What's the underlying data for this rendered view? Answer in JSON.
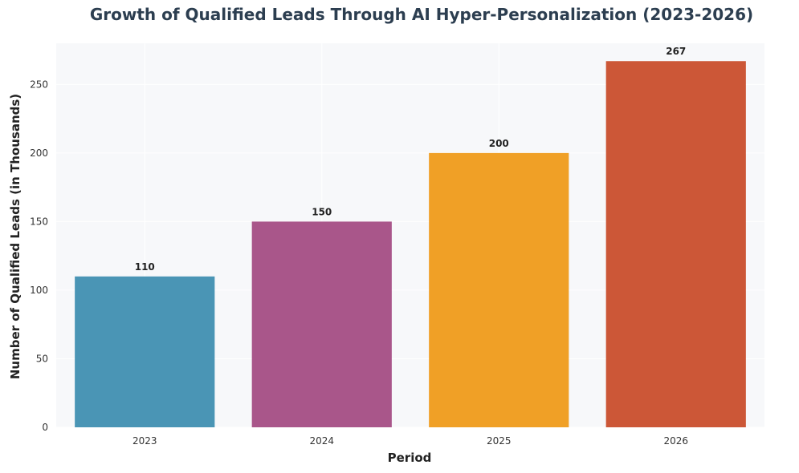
{
  "chart_data": {
    "type": "bar",
    "title": "Growth of Qualified Leads Through AI Hyper-Personalization (2023-2026)",
    "xlabel": "Period",
    "ylabel": "Number of Qualified Leads (in Thousands)",
    "categories": [
      "2023",
      "2024",
      "2025",
      "2026"
    ],
    "values": [
      110,
      150,
      200,
      267
    ],
    "data_labels": [
      "110",
      "150",
      "200",
      "267"
    ],
    "colors": [
      "#4a95b5",
      "#a9568a",
      "#f0a026",
      "#cc5737"
    ],
    "ylim": [
      0,
      280
    ],
    "yticks": [
      0,
      50,
      100,
      150,
      200,
      250
    ],
    "ytick_labels": [
      "0",
      "50",
      "100",
      "150",
      "200",
      "250"
    ],
    "grid": true,
    "plot_background": "#f7f8fa"
  }
}
